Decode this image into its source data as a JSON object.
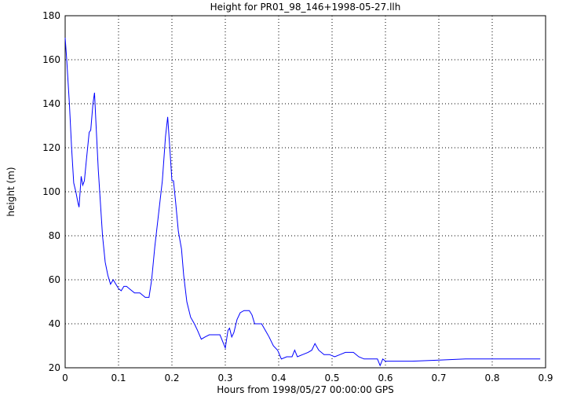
{
  "chart_data": {
    "type": "line",
    "title": "Height for PR01_98_146+1998-05-27.llh",
    "x_label": "Hours from 1998/05/27 00:00:00 GPS",
    "y_label": "height (m)",
    "xlim": [
      0,
      0.9
    ],
    "xticks": [
      0,
      0.1,
      0.2,
      0.3,
      0.4,
      0.5,
      0.6,
      0.7,
      0.8,
      0.9
    ],
    "ylim": [
      20,
      180
    ],
    "yticks": [
      20,
      40,
      60,
      80,
      100,
      120,
      140,
      160,
      180
    ],
    "grid": true,
    "series": [
      {
        "color": "#0000ff",
        "x": [
          0.0,
          0.003,
          0.008,
          0.012,
          0.016,
          0.02,
          0.024,
          0.026,
          0.03,
          0.033,
          0.036,
          0.04,
          0.045,
          0.048,
          0.052,
          0.055,
          0.058,
          0.062,
          0.066,
          0.07,
          0.075,
          0.08,
          0.085,
          0.09,
          0.095,
          0.1,
          0.105,
          0.11,
          0.115,
          0.12,
          0.13,
          0.14,
          0.15,
          0.157,
          0.162,
          0.168,
          0.175,
          0.182,
          0.188,
          0.192,
          0.196,
          0.2,
          0.203,
          0.207,
          0.212,
          0.218,
          0.222,
          0.228,
          0.235,
          0.242,
          0.248,
          0.255,
          0.262,
          0.27,
          0.28,
          0.29,
          0.295,
          0.3,
          0.305,
          0.308,
          0.312,
          0.316,
          0.322,
          0.328,
          0.335,
          0.345,
          0.35,
          0.355,
          0.362,
          0.368,
          0.375,
          0.382,
          0.39,
          0.398,
          0.405,
          0.415,
          0.425,
          0.43,
          0.435,
          0.445,
          0.455,
          0.462,
          0.468,
          0.475,
          0.485,
          0.495,
          0.505,
          0.515,
          0.525,
          0.54,
          0.55,
          0.56,
          0.575,
          0.585,
          0.59,
          0.595,
          0.6,
          0.62,
          0.65,
          0.7,
          0.75,
          0.8,
          0.85,
          0.89
        ],
        "values": [
          170,
          160,
          140,
          120,
          104,
          100,
          95,
          93,
          107,
          103,
          105,
          115,
          127,
          128,
          140,
          145,
          130,
          110,
          95,
          80,
          68,
          62,
          58,
          60,
          58,
          56,
          55,
          57,
          57,
          56,
          54,
          54,
          52,
          52,
          60,
          75,
          90,
          105,
          125,
          134,
          120,
          105,
          105,
          95,
          82,
          74,
          62,
          50,
          43,
          40,
          37,
          33,
          34,
          35,
          35,
          35,
          32,
          29,
          37,
          38,
          34,
          36,
          42,
          45,
          46,
          46,
          44,
          40,
          40,
          40,
          37,
          34,
          30,
          28,
          24,
          25,
          25,
          28,
          25,
          26,
          27,
          28,
          31,
          28,
          26,
          26,
          25,
          26,
          27,
          27,
          25,
          24,
          24,
          24,
          21,
          24,
          23,
          23,
          23,
          23.5,
          24,
          24,
          24,
          24
        ]
      }
    ]
  }
}
